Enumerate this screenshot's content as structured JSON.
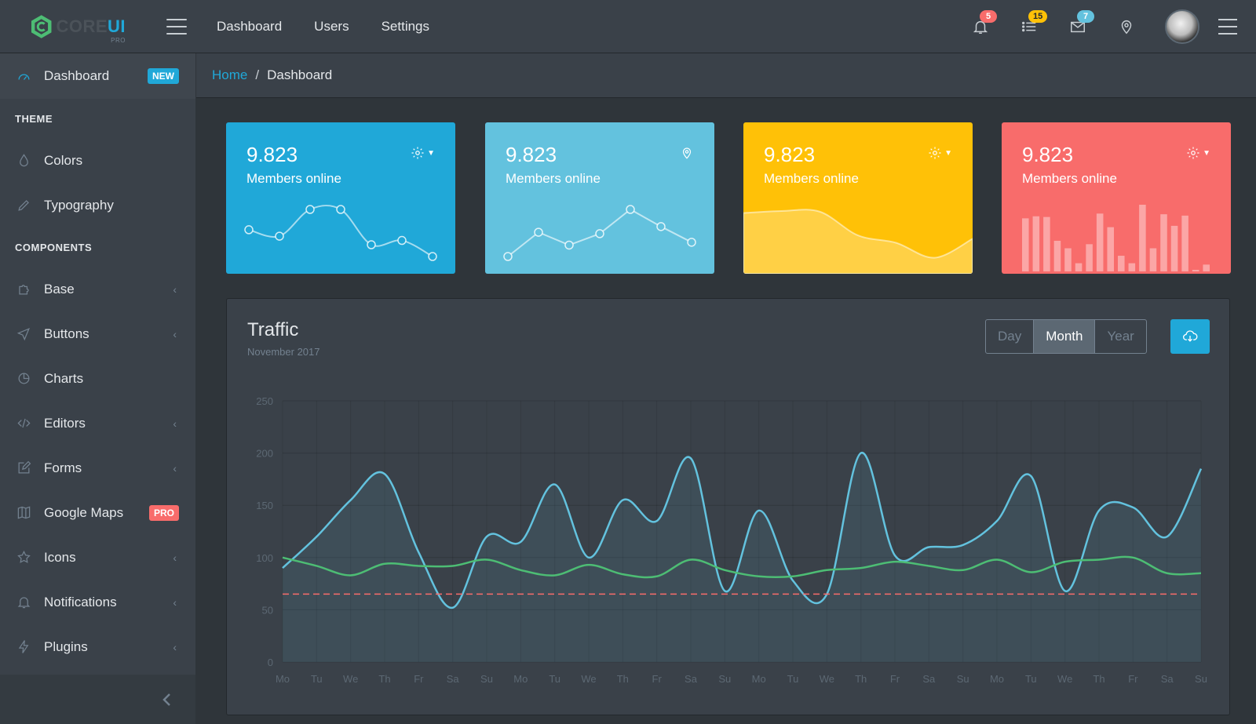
{
  "brand": {
    "name_core": "CORE",
    "name_ui": "UI",
    "edition": "PRO"
  },
  "topnav": [
    {
      "label": "Dashboard"
    },
    {
      "label": "Users"
    },
    {
      "label": "Settings"
    }
  ],
  "header_icons": [
    {
      "icon": "bell-icon",
      "badge": "5",
      "color": "#f86c6b"
    },
    {
      "icon": "list-icon",
      "badge": "15",
      "color": "#ffc107"
    },
    {
      "icon": "envelope-icon",
      "badge": "7",
      "color": "#63c2de"
    },
    {
      "icon": "location-pin-icon",
      "badge": "",
      "color": ""
    }
  ],
  "sidebar": {
    "items": [
      {
        "type": "item",
        "label": "Dashboard",
        "icon": "speedometer-icon",
        "badge": "NEW",
        "badge_color": "#20a8d8",
        "active": true
      },
      {
        "type": "title",
        "label": "THEME"
      },
      {
        "type": "item",
        "label": "Colors",
        "icon": "drop-icon"
      },
      {
        "type": "item",
        "label": "Typography",
        "icon": "pencil-icon"
      },
      {
        "type": "title",
        "label": "COMPONENTS"
      },
      {
        "type": "item",
        "label": "Base",
        "icon": "puzzle-icon",
        "chevron": true
      },
      {
        "type": "item",
        "label": "Buttons",
        "icon": "cursor-icon",
        "chevron": true
      },
      {
        "type": "item",
        "label": "Charts",
        "icon": "pie-chart-icon"
      },
      {
        "type": "item",
        "label": "Editors",
        "icon": "code-icon",
        "chevron": true
      },
      {
        "type": "item",
        "label": "Forms",
        "icon": "note-icon",
        "chevron": true
      },
      {
        "type": "item",
        "label": "Google Maps",
        "icon": "map-icon",
        "badge": "PRO",
        "badge_color": "#f86c6b"
      },
      {
        "type": "item",
        "label": "Icons",
        "icon": "star-icon",
        "chevron": true
      },
      {
        "type": "item",
        "label": "Notifications",
        "icon": "bell-icon",
        "chevron": true
      },
      {
        "type": "item",
        "label": "Plugins",
        "icon": "energy-icon",
        "chevron": true
      }
    ]
  },
  "breadcrumb": {
    "home": "Home",
    "current": "Dashboard"
  },
  "stat_cards": [
    {
      "value": "9.823",
      "label": "Members online",
      "color": "#20a8d8",
      "icon": "gear-dropdown-icon"
    },
    {
      "value": "9.823",
      "label": "Members online",
      "color": "#63c2de",
      "icon": "location-pin-icon"
    },
    {
      "value": "9.823",
      "label": "Members online",
      "color": "#ffc107",
      "icon": "gear-dropdown-icon"
    },
    {
      "value": "9.823",
      "label": "Members online",
      "color": "#f86c6b",
      "icon": "gear-dropdown-icon"
    }
  ],
  "traffic": {
    "title": "Traffic",
    "subtitle": "November 2017",
    "periods": [
      {
        "label": "Day"
      },
      {
        "label": "Month",
        "active": true
      },
      {
        "label": "Year"
      }
    ],
    "download_icon": "cloud-download-icon"
  },
  "chart_data": {
    "type": "line",
    "title": "Traffic",
    "categories": [
      "Mo",
      "Tu",
      "We",
      "Th",
      "Fr",
      "Sa",
      "Su",
      "Mo",
      "Tu",
      "We",
      "Th",
      "Fr",
      "Sa",
      "Su",
      "Mo",
      "Tu",
      "We",
      "Th",
      "Fr",
      "Sa",
      "Su",
      "Mo",
      "Tu",
      "We",
      "Th",
      "Fr",
      "Sa",
      "Su"
    ],
    "ylim": [
      0,
      250
    ],
    "yticks": [
      0,
      50,
      100,
      150,
      200,
      250
    ],
    "grid": true,
    "series": [
      {
        "values": [
          90,
          120,
          155,
          180,
          105,
          52,
          120,
          115,
          170,
          100,
          155,
          135,
          195,
          68,
          145,
          78,
          65,
          200,
          102,
          110,
          112,
          135,
          178,
          68,
          145,
          148,
          120,
          185
        ],
        "color": "#63c2de",
        "fill": true
      },
      {
        "values": [
          100,
          92,
          83,
          94,
          92,
          92,
          98,
          88,
          83,
          93,
          84,
          82,
          98,
          88,
          82,
          82,
          88,
          90,
          96,
          92,
          88,
          98,
          86,
          96,
          98,
          100,
          85,
          85
        ],
        "color": "#4dbd74",
        "fill": false
      },
      {
        "values": [
          65,
          65,
          65,
          65,
          65,
          65,
          65,
          65,
          65,
          65,
          65,
          65,
          65,
          65,
          65,
          65,
          65,
          65,
          65,
          65,
          65,
          65,
          65,
          65,
          65,
          65,
          65,
          65
        ],
        "color": "#f86c6b",
        "dashed": true
      }
    ]
  },
  "spark_data": [
    {
      "type": "line",
      "values": [
        65,
        59,
        84,
        84,
        51,
        55,
        40
      ]
    },
    {
      "type": "line",
      "values": [
        1,
        18,
        9,
        17,
        34,
        22,
        11
      ]
    },
    {
      "type": "area",
      "values": [
        78,
        81,
        80,
        45,
        34,
        12,
        40
      ]
    },
    {
      "type": "bar",
      "values": [
        78,
        81,
        80,
        45,
        34,
        12,
        40,
        85,
        65,
        23,
        12,
        98,
        34,
        84,
        67,
        82,
        0,
        10
      ]
    }
  ]
}
